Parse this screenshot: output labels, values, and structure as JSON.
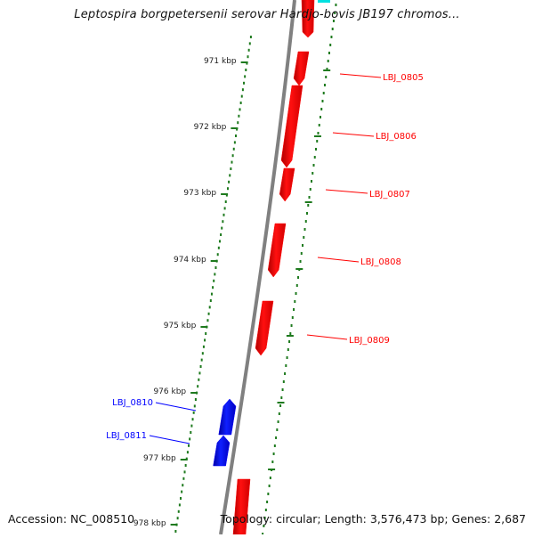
{
  "title": "Leptospira borgpetersenii serovar Hardjo-bovis JB197 chromos...",
  "footer": {
    "accession": "Accession: NC_008510",
    "summary": "Topology: circular; Length: 3,576,473 bp; Genes: 2,687"
  },
  "ticks": [
    {
      "label": "971 kbp"
    },
    {
      "label": "972 kbp"
    },
    {
      "label": "973 kbp"
    },
    {
      "label": "974 kbp"
    },
    {
      "label": "975 kbp"
    },
    {
      "label": "976 kbp"
    },
    {
      "label": "977 kbp"
    },
    {
      "label": "978 kbp"
    }
  ],
  "genes": [
    {
      "label": "LBJ_0805",
      "strand": "forward"
    },
    {
      "label": "LBJ_0806",
      "strand": "forward"
    },
    {
      "label": "LBJ_0807",
      "strand": "forward"
    },
    {
      "label": "LBJ_0808",
      "strand": "forward"
    },
    {
      "label": "LBJ_0809",
      "strand": "forward"
    },
    {
      "label": "LBJ_0810",
      "strand": "reverse"
    },
    {
      "label": "LBJ_0811",
      "strand": "reverse"
    }
  ],
  "colors": {
    "forward": "#ff0000",
    "reverse": "#0000ff",
    "backbone": "#808080",
    "ticks": "#1e7a1e",
    "partial": "#00e0e0"
  }
}
